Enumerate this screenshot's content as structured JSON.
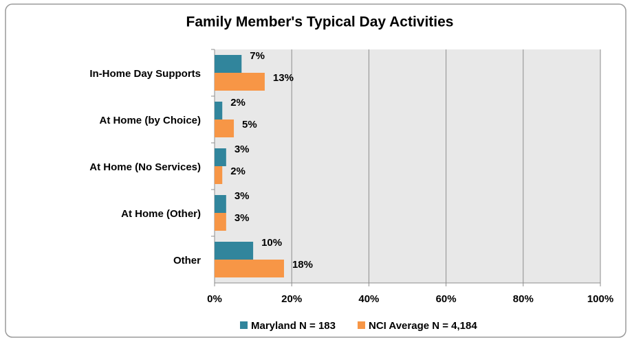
{
  "chart_data": {
    "type": "hbar",
    "title": "Family Member's Typical Day Activities",
    "categories": [
      "In-Home Day Supports",
      "At Home (by Choice)",
      "At Home (No Services)",
      "At Home (Other)",
      "Other"
    ],
    "series": [
      {
        "name": "Maryland N = 183",
        "color": "#31859c",
        "values": [
          7,
          2,
          3,
          3,
          10
        ],
        "value_labels": [
          "7%",
          "2%",
          "3%",
          "3%",
          "10%"
        ]
      },
      {
        "name": "NCI Average N = 4,184",
        "color": "#f79646",
        "values": [
          13,
          5,
          2,
          3,
          18
        ],
        "value_labels": [
          "13%",
          "5%",
          "2%",
          "3%",
          "18%"
        ]
      }
    ],
    "xlim": [
      0,
      100
    ],
    "xticks": [
      {
        "value": 0,
        "label": "0%"
      },
      {
        "value": 20,
        "label": "20%"
      },
      {
        "value": 40,
        "label": "40%"
      },
      {
        "value": 60,
        "label": "60%"
      },
      {
        "value": 80,
        "label": "80%"
      },
      {
        "value": 100,
        "label": "100%"
      }
    ],
    "grid": true,
    "legend": "bottom"
  }
}
